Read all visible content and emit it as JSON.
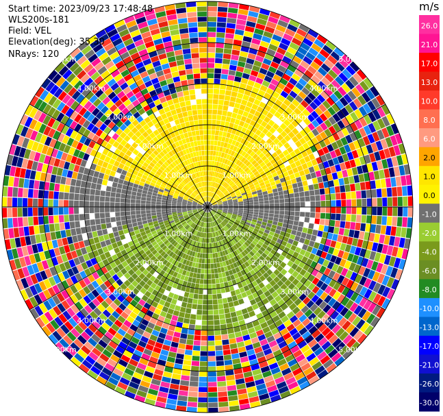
{
  "header": {
    "start_time": "Start time: 2023/09/23 17:48:48",
    "station": "WLS200s-181",
    "field": "Field: VEL",
    "elevation": "Elevation(deg): 35.30",
    "nrays": "NRays: 120"
  },
  "chart_data": {
    "type": "heatmap",
    "subtype": "polar-ppi",
    "rays": 120,
    "range_rings_km": [
      "1.00km",
      "2.00km",
      "3.00km",
      "4.00km",
      "5.00km"
    ],
    "colorbar": {
      "unit": "m/s",
      "tick_labels": [
        "26.0",
        "21.0",
        "17.0",
        "13.0",
        "10.0",
        "8.0",
        "6.0",
        "2.0",
        "1.0",
        "0.0",
        "-1.0",
        "-2.0",
        "-4.0",
        "-6.0",
        "-8.0",
        "-10.0",
        "-13.0",
        "-17.0",
        "-21.0",
        "-26.0",
        "-30.0"
      ],
      "colors": [
        "#ff2fa0",
        "#ff1493",
        "#ff0000",
        "#e8220f",
        "#ff3a2a",
        "#ff6f50",
        "#ff9a80",
        "#ffa500",
        "#ffe600",
        "#fff200",
        "#707070",
        "#9acd32",
        "#7a9a1c",
        "#6b8e23",
        "#228b22",
        "#1e90ff",
        "#0066cc",
        "#0000ff",
        "#1010d0",
        "#001a80",
        "#00006a"
      ]
    }
  }
}
